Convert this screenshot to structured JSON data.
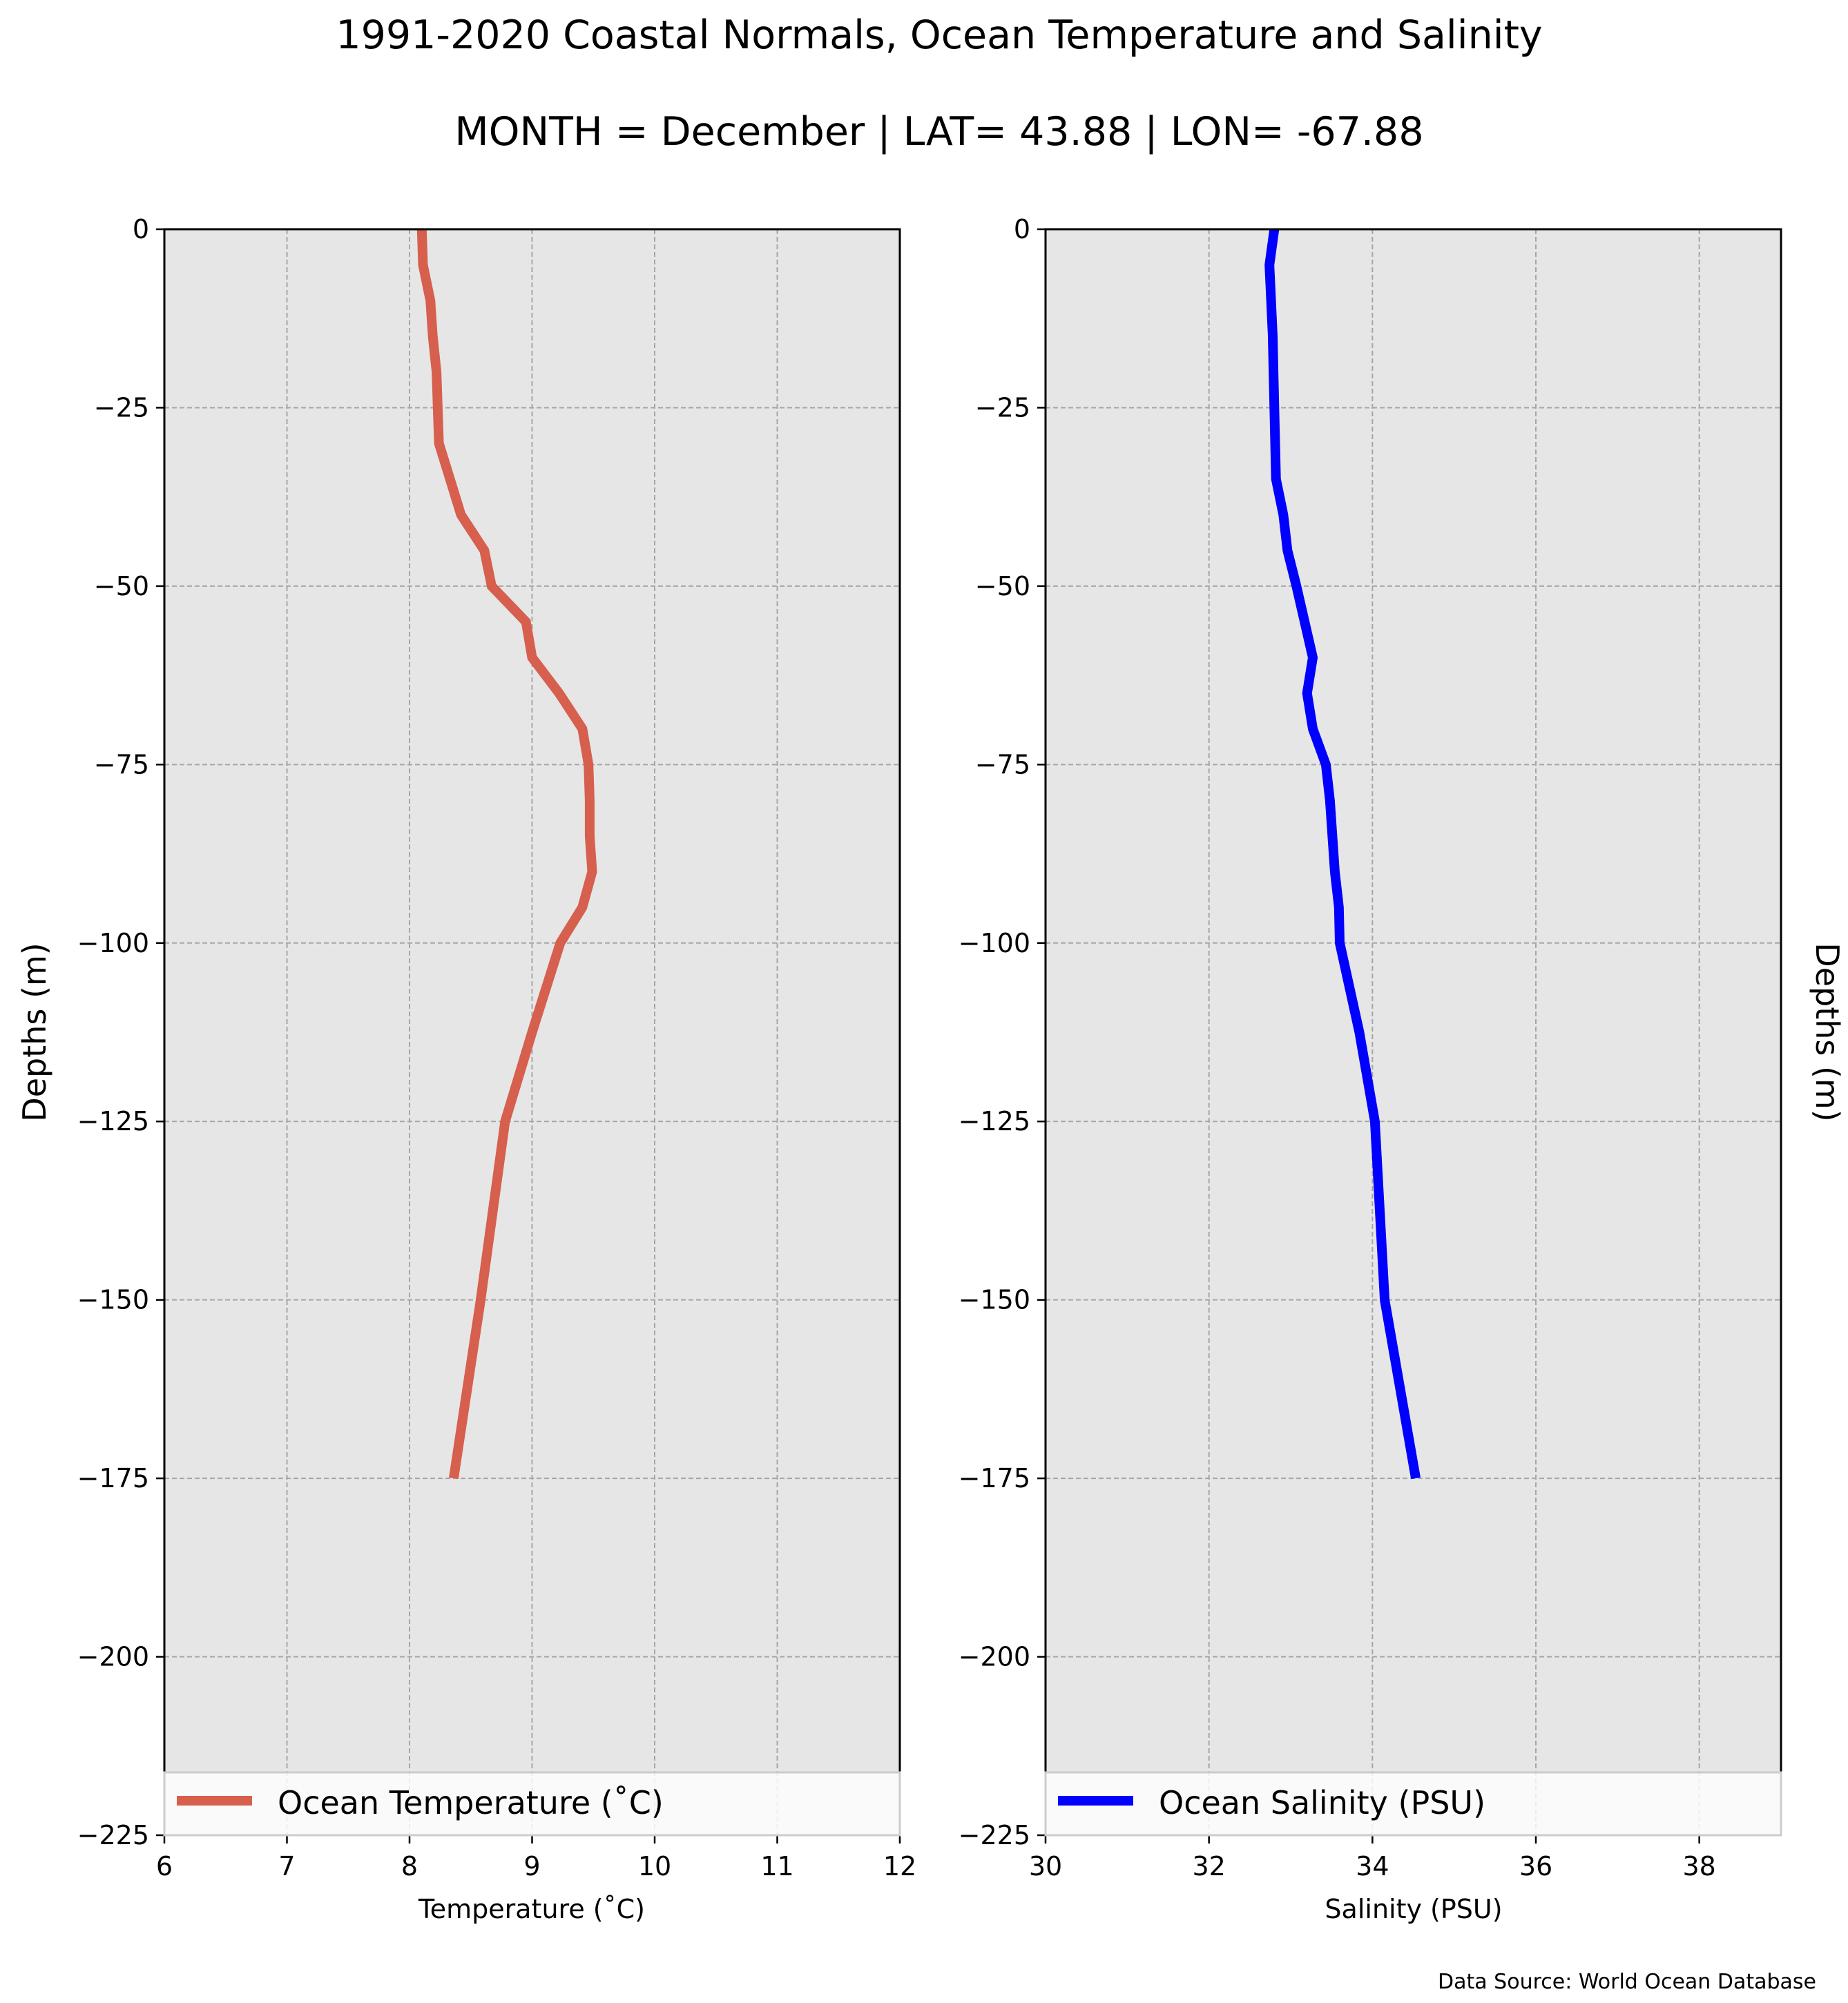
{
  "figure": {
    "title": "1991-2020 Coastal Normals, Ocean Temperature and Salinity",
    "subtitle": "MONTH = December | LAT= 43.88 | LON= -67.88",
    "source_note": "Data Source: World Ocean Database",
    "background": "#ffffff",
    "plot_background": "#e6e6e6"
  },
  "chart_data": [
    {
      "type": "line",
      "xlabel": "Temperature ($^\\circ$C)",
      "xlabel_display": "Temperature (˚C)",
      "ylabel": "Depths (m)",
      "ylabel_position": "left",
      "xlim": [
        6,
        12
      ],
      "ylim": [
        -225,
        0
      ],
      "xticks": [
        6,
        7,
        8,
        9,
        10,
        11,
        12
      ],
      "xtick_labels": [
        "6",
        "7",
        "8",
        "9",
        "10",
        "11",
        "12"
      ],
      "yticks": [
        0,
        -25,
        -50,
        -75,
        -100,
        -125,
        -150,
        -175,
        -200,
        -225
      ],
      "ytick_labels": [
        "0",
        "−25",
        "−50",
        "−75",
        "−100",
        "−125",
        "−150",
        "−175",
        "−200",
        "−225"
      ],
      "grid": true,
      "legend_position": "bottom",
      "series": [
        {
          "name": "Ocean Temperature (˚C)",
          "color": "#d65f4d",
          "x": [
            8.1,
            8.11,
            8.17,
            8.19,
            8.22,
            8.24,
            8.33,
            8.42,
            8.61,
            8.67,
            8.95,
            9.0,
            9.22,
            9.41,
            9.46,
            9.47,
            9.47,
            9.49,
            9.41,
            9.23,
            9.0,
            8.78,
            8.58,
            8.36
          ],
          "y": [
            0,
            -5,
            -10,
            -15,
            -20,
            -30,
            -35,
            -40,
            -45,
            -50,
            -55,
            -60,
            -65,
            -70,
            -75,
            -80,
            -85,
            -90,
            -95,
            -100,
            -112.5,
            -125,
            -150,
            -175
          ]
        }
      ]
    },
    {
      "type": "line",
      "xlabel": "Salinity (PSU)",
      "ylabel": "Depths (m)",
      "ylabel_position": "right",
      "xlim": [
        30,
        39
      ],
      "ylim": [
        -225,
        0
      ],
      "xticks": [
        30,
        32,
        34,
        36,
        38
      ],
      "xtick_labels": [
        "30",
        "32",
        "34",
        "36",
        "38"
      ],
      "yticks": [
        0,
        -25,
        -50,
        -75,
        -100,
        -125,
        -150,
        -175,
        -200,
        -225
      ],
      "ytick_labels": [
        "0",
        "−25",
        "−50",
        "−75",
        "−100",
        "−125",
        "−150",
        "−175",
        "−200",
        "−225"
      ],
      "grid": true,
      "legend_position": "bottom",
      "series": [
        {
          "name": "Ocean Salinity (PSU)",
          "color": "#0000ff",
          "x": [
            32.8,
            32.74,
            32.76,
            32.78,
            32.79,
            32.8,
            32.81,
            32.82,
            32.91,
            32.96,
            33.07,
            33.27,
            33.2,
            33.27,
            33.43,
            33.48,
            33.54,
            33.59,
            33.6,
            33.84,
            34.03,
            34.15,
            34.53
          ],
          "y": [
            0,
            -5,
            -10,
            -15,
            -20,
            -25,
            -30,
            -35,
            -40,
            -45,
            -50,
            -60,
            -65,
            -70,
            -75,
            -80,
            -90,
            -95,
            -100,
            -112.5,
            -125,
            -150,
            -175
          ]
        }
      ]
    }
  ]
}
